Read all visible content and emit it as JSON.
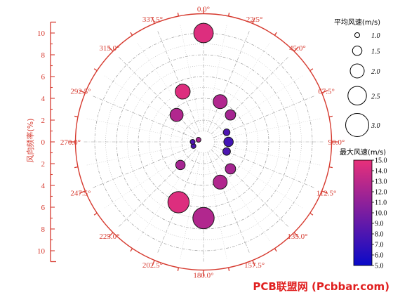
{
  "chart_data": {
    "type": "scatter",
    "subtype": "polar-bubble",
    "ylabel": "风向频率(%)",
    "radial_ticks": [
      0,
      2,
      4,
      6,
      8,
      10
    ],
    "rlim": [
      0,
      11
    ],
    "direction_labels": [
      "0.0°",
      "22.5°",
      "45.0°",
      "67.5°",
      "90.0°",
      "112.5°",
      "135.0°",
      "157.5°",
      "180.0°",
      "202.5°",
      "225.0°",
      "247.5°",
      "270.0°",
      "292.5°",
      "315.0°",
      "337.5°"
    ],
    "grid": true,
    "size_legend": {
      "title": "平均风速(m/s)",
      "values": [
        1.0,
        1.5,
        2.0,
        2.5,
        3.0
      ],
      "labels": [
        "1.0",
        "1.5",
        "2.0",
        "2.5",
        "3.0"
      ]
    },
    "color_legend": {
      "title": "最大风速(m/s)",
      "range": [
        5.0,
        15.0
      ],
      "ticks": [
        "15.0",
        "14.0",
        "13.0",
        "12.0",
        "11.0",
        "10.0",
        "9.0",
        "8.0",
        "7.0",
        "6.0",
        "5.0"
      ],
      "colors": [
        "#0a0ac8",
        "#e8307a"
      ]
    },
    "points": [
      {
        "direction": 0.0,
        "frequency": 10.0,
        "mean_speed": 2.6,
        "max_speed": 14.5
      },
      {
        "direction": 22.5,
        "frequency": 4.0,
        "mean_speed": 2.0,
        "max_speed": 12.5
      },
      {
        "direction": 45.0,
        "frequency": 3.5,
        "mean_speed": 1.6,
        "max_speed": 12.0
      },
      {
        "direction": 67.5,
        "frequency": 2.3,
        "mean_speed": 1.2,
        "max_speed": 8.0
      },
      {
        "direction": 90.0,
        "frequency": 2.3,
        "mean_speed": 1.5,
        "max_speed": 7.5
      },
      {
        "direction": 112.5,
        "frequency": 2.3,
        "mean_speed": 1.3,
        "max_speed": 8.0
      },
      {
        "direction": 135.0,
        "frequency": 3.5,
        "mean_speed": 1.6,
        "max_speed": 12.0
      },
      {
        "direction": 157.5,
        "frequency": 4.0,
        "mean_speed": 2.0,
        "max_speed": 12.5
      },
      {
        "direction": 180.0,
        "frequency": 7.0,
        "mean_speed": 2.8,
        "max_speed": 12.5
      },
      {
        "direction": 202.5,
        "frequency": 6.0,
        "mean_speed": 2.8,
        "max_speed": 14.5
      },
      {
        "direction": 225.0,
        "frequency": 3.0,
        "mean_speed": 1.5,
        "max_speed": 12.0
      },
      {
        "direction": 247.5,
        "frequency": 1.0,
        "mean_speed": 1.0,
        "max_speed": 8.0
      },
      {
        "direction": 270.0,
        "frequency": 1.0,
        "mean_speed": 1.0,
        "max_speed": 8.0
      },
      {
        "direction": 292.5,
        "frequency": 0.5,
        "mean_speed": 1.0,
        "max_speed": 12.0
      },
      {
        "direction": 315.0,
        "frequency": 3.5,
        "mean_speed": 1.9,
        "max_speed": 12.5
      },
      {
        "direction": 337.5,
        "frequency": 5.0,
        "mean_speed": 2.1,
        "max_speed": 14.5
      }
    ]
  },
  "colors": {
    "axis": "#d63a2f",
    "grid": "#9a9a9a",
    "marker_edge": "#1a1a1a"
  },
  "watermark": "PCB联盟网 (Pcbbar.com)"
}
